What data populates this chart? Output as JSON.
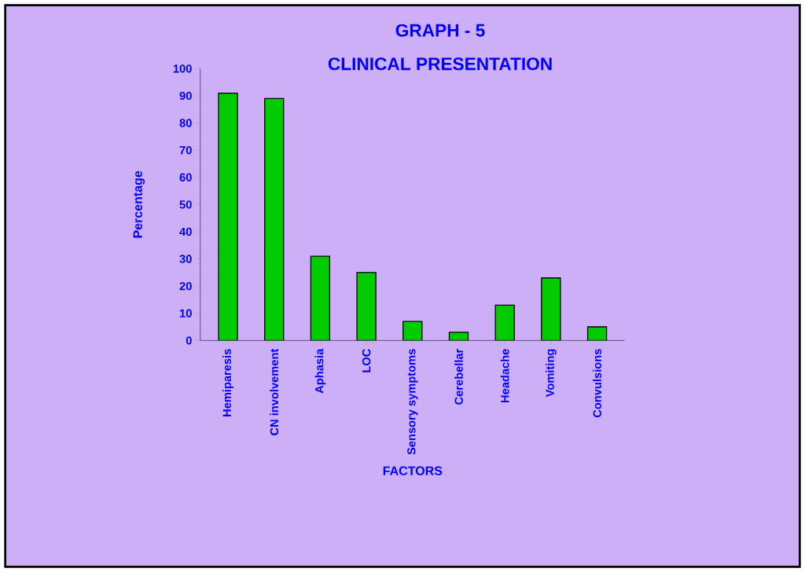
{
  "chart_data": {
    "type": "bar",
    "title": "GRAPH - 5",
    "subtitle": "CLINICAL PRESENTATION",
    "xlabel": "FACTORS",
    "ylabel": "Percentage",
    "categories": [
      "Hemiparesis",
      "CN involvement",
      "Aphasia",
      "LOC",
      "Sensory symptoms",
      "Cerebellar",
      "Headache",
      "Vomiting",
      "Convulsions"
    ],
    "values": [
      91,
      89,
      31,
      25,
      7,
      3,
      13,
      23,
      5
    ],
    "color": "#00cc00",
    "ylim": [
      0,
      100
    ],
    "yticks": [
      0,
      10,
      20,
      30,
      40,
      50,
      60,
      70,
      80,
      90,
      100
    ]
  }
}
